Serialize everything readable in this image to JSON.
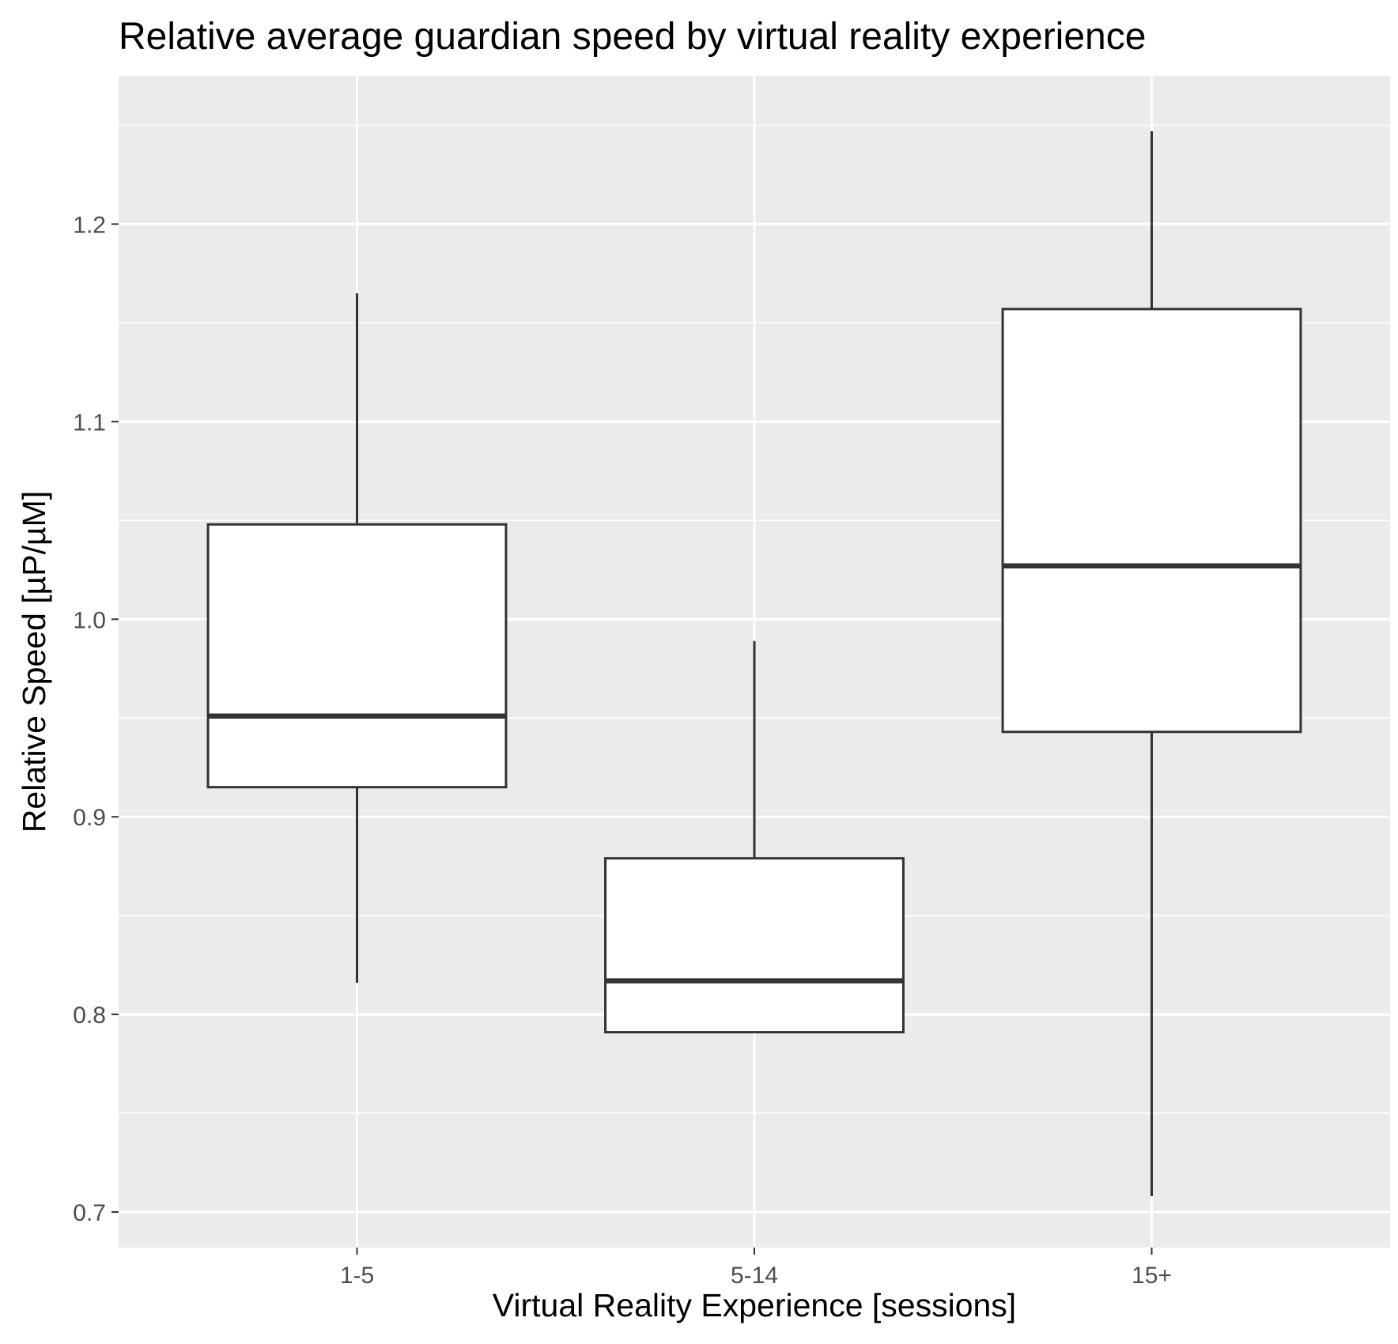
{
  "chart_data": {
    "type": "box",
    "title": "Relative average guardian speed by virtual reality experience",
    "xlabel": "Virtual Reality Experience [sessions]",
    "ylabel": "Relative Speed [µP/µM]",
    "categories": [
      "1-5",
      "5-14",
      "15+"
    ],
    "boxes": [
      {
        "category": "1-5",
        "whisker_low": 0.816,
        "q1": 0.915,
        "median": 0.951,
        "q3": 1.048,
        "whisker_high": 1.165
      },
      {
        "category": "5-14",
        "whisker_low": 0.791,
        "q1": 0.791,
        "median": 0.817,
        "q3": 0.879,
        "whisker_high": 0.989
      },
      {
        "category": "15+",
        "whisker_low": 0.708,
        "q1": 0.943,
        "median": 1.027,
        "q3": 1.157,
        "whisker_high": 1.247
      }
    ],
    "yticks": [
      {
        "value": 0.7,
        "label": "0.7"
      },
      {
        "value": 0.8,
        "label": "0.8"
      },
      {
        "value": 0.9,
        "label": "0.9"
      },
      {
        "value": 1.0,
        "label": "1.0"
      },
      {
        "value": 1.1,
        "label": "1.1"
      },
      {
        "value": 1.2,
        "label": "1.2"
      }
    ],
    "ylim": [
      0.682,
      1.275
    ],
    "grid": true,
    "colors": {
      "panel_background": "#ebebeb",
      "grid_line": "#ffffff",
      "box_fill": "#ffffff",
      "box_stroke": "#333333",
      "tick_text": "#4d4d4d",
      "tick_mark": "#333333"
    }
  }
}
